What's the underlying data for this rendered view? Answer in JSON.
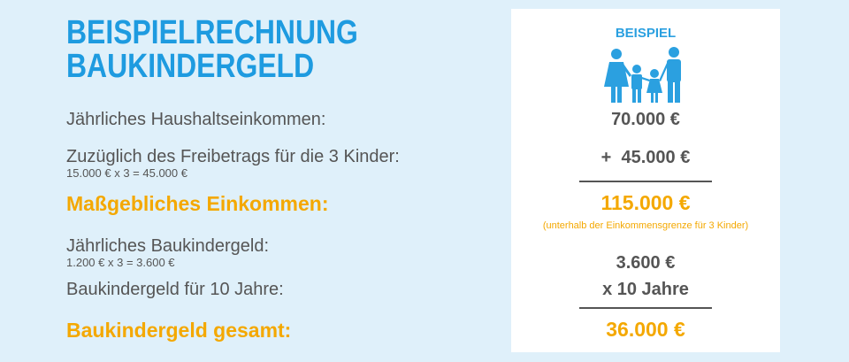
{
  "header": {
    "title": [
      "BEISPIELRECHNUNG",
      "BAUKINDERGELD"
    ]
  },
  "panel": {
    "label": "BEISPIEL"
  },
  "rows": [
    {
      "label": "Jährliches Haushaltseinkommen:",
      "value": "70.000 €"
    },
    {
      "label": "Zuzüglich des Freibetrags für die 3 Kinder:",
      "sub": "15.000 € x 3 = 45.000 €",
      "value": "+  45.000 €"
    },
    {
      "label": "Maßgebliches Einkommen:",
      "value": "115.000 €",
      "note": "(unterhalb der Einkommensgrenze für 3 Kinder)"
    },
    {
      "label": "Jährliches Baukindergeld:",
      "sub": "1.200 € x 3 = 3.600 €",
      "value": "3.600 €"
    },
    {
      "label": "Baukindergeld für 10 Jahre:",
      "value": "x 10 Jahre"
    },
    {
      "label": "Baukindergeld gesamt:",
      "value": "36.000 €"
    }
  ]
}
